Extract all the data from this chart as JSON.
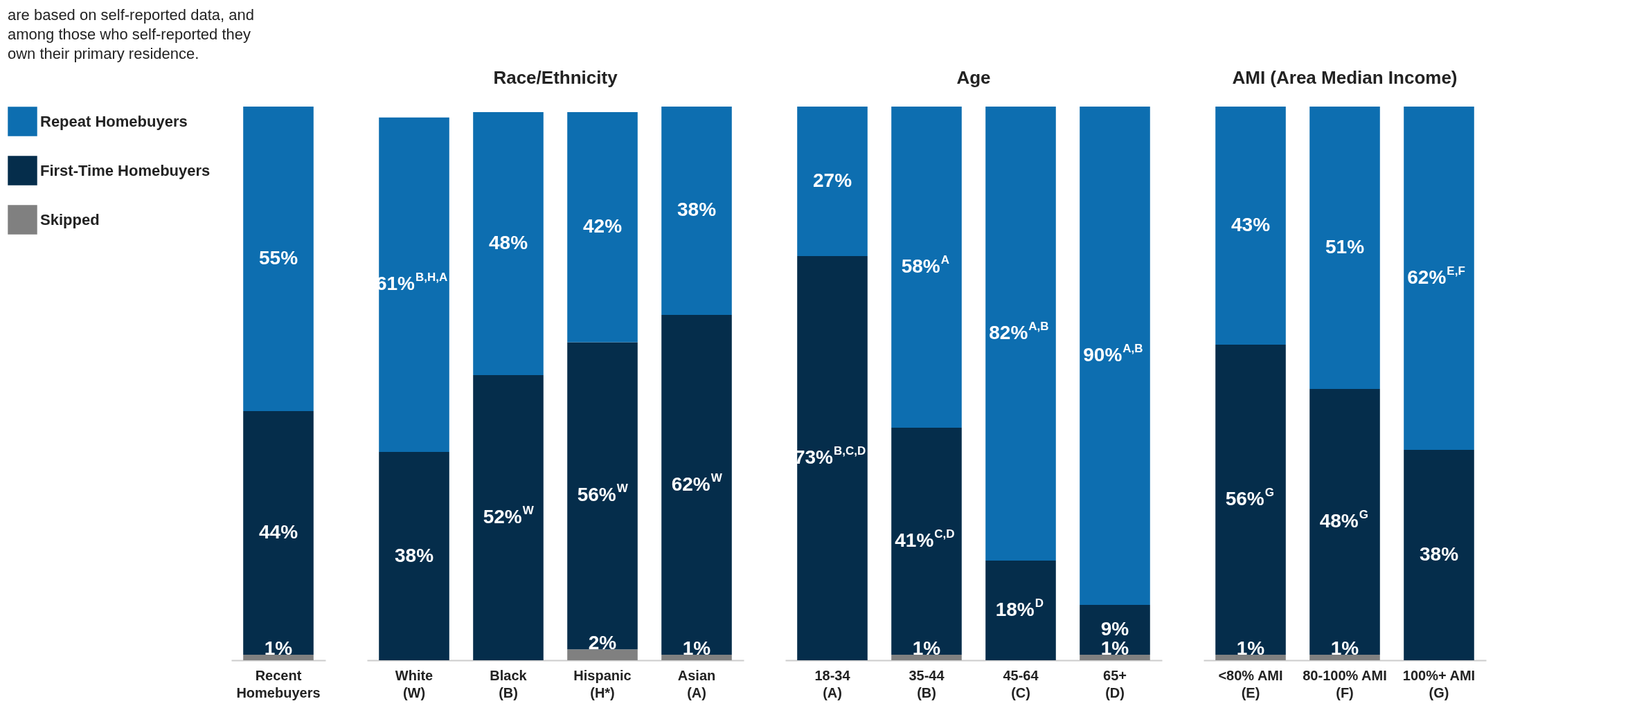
{
  "chart_data": [
    {
      "type": "bar",
      "stacked": true,
      "categories": [
        "Recent Homebuyers"
      ],
      "tick_labels": "x",
      "legend": "left",
      "annotations": [
        "are based on self-reported data, and among those who self-reported they own their primary residence."
      ],
      "series": [
        {
          "name": "Skipped",
          "color": "#808080",
          "values": [
            1
          ],
          "value_labels": [
            "1%"
          ]
        },
        {
          "name": "First-Time Homebuyers",
          "color": "#052d4b",
          "values": [
            44
          ],
          "value_labels": [
            "44%"
          ]
        },
        {
          "name": "Repeat Homebuyers",
          "color": "#0d6eb0",
          "values": [
            55
          ],
          "value_labels": [
            "55%"
          ]
        }
      ]
    },
    {
      "type": "bar",
      "stacked": true,
      "title": "Race/Ethnicity",
      "categories": [
        "White (W)",
        "Black (B)",
        "Hispanic (H*)",
        "Asian (A)"
      ],
      "tick_labels": "x",
      "series": [
        {
          "color": "#808080",
          "values": [
            null,
            null,
            2,
            1
          ],
          "value_labels": [
            null,
            null,
            "2%",
            "1%"
          ]
        },
        {
          "color": "#052d4b",
          "values": [
            38,
            52,
            56,
            62
          ],
          "value_labels": [
            "38%",
            "52%$^{W}$",
            "56%$^{W}$",
            "62%$^{W}$"
          ]
        },
        {
          "color": "#0d6eb0",
          "values": [
            61,
            48,
            42,
            38
          ],
          "value_labels": [
            "61%$^{B,H,A}$",
            "48%",
            "42%",
            "38%"
          ]
        }
      ]
    },
    {
      "type": "bar",
      "stacked": true,
      "title": "Age",
      "categories": [
        "18-34 (A)",
        "35-44 (B)",
        "45-64 (C)",
        "65+ (D)"
      ],
      "tick_labels": "x",
      "series": [
        {
          "color": "#808080",
          "values": [
            null,
            1,
            null,
            1
          ],
          "value_labels": [
            null,
            "1%",
            null,
            "1%"
          ]
        },
        {
          "color": "#052d4b",
          "values": [
            73,
            41,
            18,
            9
          ],
          "value_labels": [
            "73%$^{B,C,D}$",
            "41%$^{C,D}$",
            "18%$^{D}$",
            "9%"
          ]
        },
        {
          "color": "#0d6eb0",
          "values": [
            27,
            58,
            82,
            90
          ],
          "value_labels": [
            "27%",
            "58%$^{A}$",
            "82%$^{A,B}$",
            "90%$^{A,B}$"
          ]
        }
      ]
    },
    {
      "type": "bar",
      "stacked": true,
      "title": "AMI (Area Median Income)",
      "categories": [
        "<80% AMI (E)",
        "80-100% AMI (F)",
        "100%+ AMI (G)"
      ],
      "tick_labels": "x",
      "series": [
        {
          "color": "#808080",
          "values": [
            1,
            1,
            null
          ],
          "value_labels": [
            "1%",
            "1%",
            null
          ]
        },
        {
          "color": "#052d4b",
          "values": [
            56,
            48,
            38
          ],
          "value_labels": [
            "56%$^{G}$",
            "48%$^{G}$",
            "38%"
          ]
        },
        {
          "color": "#0d6eb0",
          "values": [
            43,
            51,
            62
          ],
          "value_labels": [
            "43%",
            "51%",
            "62%$^{E,F}$"
          ]
        }
      ]
    }
  ]
}
